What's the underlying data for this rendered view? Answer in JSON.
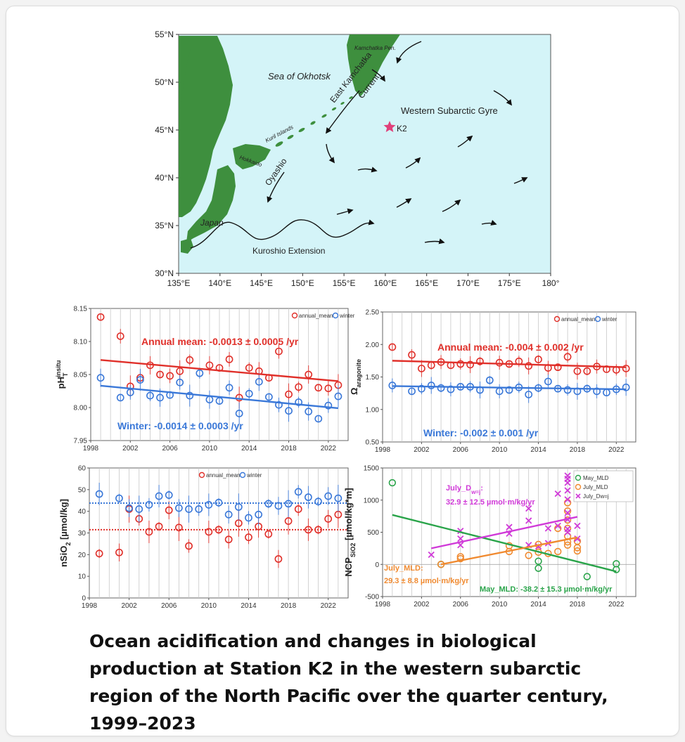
{
  "caption": "Ocean acidification and changes in biological production at Station K2 in the western subarctic region of the North Pacific over the quarter century, 1999–2023",
  "map": {
    "lat_ticks": [
      "55°N",
      "50°N",
      "45°N",
      "40°N",
      "35°N",
      "30°N"
    ],
    "lon_ticks": [
      "135°E",
      "140°E",
      "145°E",
      "150°E",
      "155°E",
      "160°E",
      "165°E",
      "170°E",
      "175°E",
      "180°"
    ],
    "labels": {
      "sea_of_okhotsk": "Sea of Okhotsk",
      "kamchatka_pen": "Kamchatka Pen.",
      "east_kamchatka_1": "East Kamchatka",
      "east_kamchatka_2": "Current",
      "western_subarctic_gyre": "Western Subarctic Gyre",
      "k2": "K2",
      "kuril_islands": "Kuril Islands",
      "hokkaido": "Hokkaido",
      "oyashio": "Oyashio",
      "japan": "Japan",
      "kuroshio_extension": "Kuroshio Extension"
    },
    "colors": {
      "ocean": "#d4f4f8",
      "land": "#3e8f3e",
      "station": "#e0407a"
    }
  },
  "chart_data": [
    {
      "id": "ph",
      "type": "scatter",
      "ylabel_main": "pH",
      "ylabel_sub": "T",
      "ylabel_sup": "insitu",
      "xlim": [
        1998,
        2024
      ],
      "ylim": [
        7.95,
        8.15
      ],
      "x_ticks": [
        "1998",
        "2002",
        "2006",
        "2010",
        "2014",
        "2018",
        "2022"
      ],
      "y_ticks": [
        "8.15",
        "8.10",
        "8.05",
        "8.00",
        "7.95"
      ],
      "y_tick_values": [
        8.15,
        8.1,
        8.05,
        8.0,
        7.95
      ],
      "legend": [
        "annual_mean",
        "winter"
      ],
      "annotations": [
        "Annual mean: -0.0013 ± 0.0005 /yr",
        "Winter: -0.0014 ± 0.0003 /yr"
      ],
      "series": [
        {
          "name": "annual_mean",
          "color": "#e0302a",
          "x": [
            1999,
            2001,
            2002,
            2003,
            2004,
            2005,
            2006,
            2007,
            2008,
            2010,
            2011,
            2012,
            2013,
            2014,
            2015,
            2016,
            2017,
            2018,
            2019,
            2020,
            2021,
            2022,
            2023
          ],
          "y": [
            8.137,
            8.108,
            8.032,
            8.045,
            8.064,
            8.05,
            8.048,
            8.055,
            8.072,
            8.064,
            8.06,
            8.073,
            8.015,
            8.06,
            8.055,
            8.045,
            8.085,
            8.02,
            8.031,
            8.05,
            8.03,
            8.029,
            8.034
          ],
          "trend": [
            [
              1999,
              8.072
            ],
            [
              2023,
              8.04
            ]
          ]
        },
        {
          "name": "winter",
          "color": "#3a78d8",
          "x": [
            1999,
            2001,
            2002,
            2003,
            2004,
            2005,
            2006,
            2007,
            2008,
            2009,
            2010,
            2011,
            2012,
            2013,
            2014,
            2015,
            2016,
            2017,
            2018,
            2019,
            2020,
            2021,
            2022,
            2023
          ],
          "y": [
            8.045,
            8.015,
            8.023,
            8.042,
            8.018,
            8.015,
            8.019,
            8.038,
            8.018,
            8.052,
            8.012,
            8.01,
            8.03,
            7.991,
            8.021,
            8.039,
            8.016,
            8.004,
            7.995,
            8.008,
            7.994,
            7.983,
            8.003,
            8.017
          ],
          "trend": [
            [
              1999,
              8.033
            ],
            [
              2023,
              7.999
            ]
          ]
        }
      ]
    },
    {
      "id": "omega",
      "type": "scatter",
      "ylabel_main": "Ω",
      "ylabel_sub": "aragonite",
      "xlim": [
        1998,
        2024
      ],
      "ylim": [
        0.5,
        2.5
      ],
      "x_ticks": [
        "1998",
        "2002",
        "2006",
        "2010",
        "2014",
        "2018",
        "2022"
      ],
      "y_ticks": [
        "2.50",
        "2.00",
        "1.50",
        "1.00",
        "0.50"
      ],
      "y_tick_values": [
        2.5,
        2.0,
        1.5,
        1.0,
        0.5
      ],
      "legend": [
        "annual_mean",
        "winter"
      ],
      "annotations": [
        "Annual mean: -0.004 ± 0.002 /yr",
        "Winter: -0.002 ± 0.001 /yr"
      ],
      "series": [
        {
          "name": "annual_mean",
          "color": "#e0302a",
          "x": [
            1999,
            2001,
            2002,
            2003,
            2004,
            2005,
            2006,
            2007,
            2008,
            2010,
            2011,
            2012,
            2013,
            2014,
            2015,
            2016,
            2017,
            2018,
            2019,
            2020,
            2021,
            2022,
            2023
          ],
          "y": [
            1.96,
            1.84,
            1.63,
            1.68,
            1.73,
            1.68,
            1.7,
            1.69,
            1.74,
            1.72,
            1.7,
            1.74,
            1.67,
            1.77,
            1.64,
            1.65,
            1.81,
            1.59,
            1.59,
            1.66,
            1.62,
            1.61,
            1.63
          ],
          "trend": [
            [
              1999,
              1.75
            ],
            [
              2023,
              1.65
            ]
          ]
        },
        {
          "name": "winter",
          "color": "#3a78d8",
          "x": [
            1999,
            2001,
            2002,
            2003,
            2004,
            2005,
            2006,
            2007,
            2008,
            2009,
            2010,
            2011,
            2012,
            2013,
            2014,
            2015,
            2016,
            2017,
            2018,
            2019,
            2020,
            2021,
            2022,
            2023
          ],
          "y": [
            1.37,
            1.28,
            1.32,
            1.37,
            1.33,
            1.31,
            1.35,
            1.35,
            1.3,
            1.45,
            1.28,
            1.3,
            1.34,
            1.23,
            1.33,
            1.43,
            1.32,
            1.3,
            1.28,
            1.32,
            1.28,
            1.26,
            1.31,
            1.34
          ],
          "trend": [
            [
              1999,
              1.36
            ],
            [
              2023,
              1.31
            ]
          ]
        }
      ]
    },
    {
      "id": "nsio2",
      "type": "scatter",
      "ylabel_main": "nSiO",
      "ylabel_sub": "2",
      "ylabel_tail": " [µmol/kg]",
      "xlim": [
        1998,
        2024
      ],
      "ylim": [
        0,
        60
      ],
      "x_ticks": [
        "1998",
        "2002",
        "2006",
        "2010",
        "2014",
        "2018",
        "2022"
      ],
      "y_ticks": [
        "60",
        "50",
        "40",
        "30",
        "20",
        "10",
        "0"
      ],
      "y_tick_values": [
        60,
        50,
        40,
        30,
        20,
        10,
        0
      ],
      "legend": [
        "annual_mean",
        "winter"
      ],
      "series": [
        {
          "name": "annual_mean",
          "color": "#e0302a",
          "x": [
            1999,
            2001,
            2002,
            2003,
            2004,
            2005,
            2006,
            2007,
            2008,
            2010,
            2011,
            2012,
            2013,
            2014,
            2015,
            2016,
            2017,
            2018,
            2019,
            2020,
            2021,
            2022,
            2023
          ],
          "y": [
            20.5,
            21.0,
            41.0,
            36.5,
            30.5,
            33.0,
            40.5,
            32.5,
            24.0,
            30.5,
            31.5,
            27.0,
            34.5,
            28.0,
            33.0,
            29.5,
            18.0,
            35.5,
            41.0,
            31.5,
            31.5,
            36.5,
            38.5
          ],
          "mean_line": 31.5
        },
        {
          "name": "winter",
          "color": "#3a78d8",
          "x": [
            1999,
            2001,
            2002,
            2003,
            2004,
            2005,
            2006,
            2007,
            2008,
            2009,
            2010,
            2011,
            2012,
            2013,
            2014,
            2015,
            2016,
            2017,
            2018,
            2019,
            2020,
            2021,
            2022,
            2023
          ],
          "y": [
            48.0,
            46.0,
            41.5,
            41.0,
            43.0,
            47.0,
            47.5,
            41.5,
            41.0,
            41.0,
            43.0,
            44.0,
            38.5,
            42.0,
            37.0,
            38.5,
            43.5,
            42.5,
            43.5,
            49.0,
            46.5,
            44.5,
            47.0,
            46.0
          ],
          "mean_line": 43.8
        }
      ]
    },
    {
      "id": "ncp",
      "type": "scatter",
      "ylabel_main": "NCP",
      "ylabel_sub": "SiO2",
      "ylabel_tail": " [µmol/kg*m]",
      "xlim": [
        1998,
        2024
      ],
      "ylim": [
        -500,
        1500
      ],
      "x_ticks": [
        "1998",
        "2002",
        "2006",
        "2010",
        "2014",
        "2018",
        "2022"
      ],
      "y_ticks": [
        "1500",
        "1000",
        "500",
        "0",
        "-500"
      ],
      "y_tick_values": [
        1500,
        1000,
        500,
        0,
        -500
      ],
      "legend": [
        "May_MLD",
        "July_MLD",
        "July_Dw=j"
      ],
      "annotations": {
        "july_dwnj_title": "July_D",
        "july_dwnj_sub": "w=j",
        "july_dwnj_colon": ":",
        "july_dwnj_value": "32.9 ± 12.5 µmol·m/kg/yr",
        "july_mld_title": "July_MLD:",
        "july_mld_value": "29.3 ± 8.8 µmol·m/kg/yr",
        "may_mld": "May_MLD: -38.2 ± 15.3 µmol·m/kg/yr"
      },
      "series": [
        {
          "name": "May_MLD",
          "color": "#2aa44a",
          "marker": "circle",
          "x": [
            1999,
            2004,
            2014,
            2014,
            2019,
            2022,
            2022
          ],
          "y": [
            1270,
            0,
            -60,
            50,
            -190,
            -80,
            10
          ],
          "trend": [
            [
              1999,
              770
            ],
            [
              2022,
              -110
            ]
          ]
        },
        {
          "name": "July_MLD",
          "color": "#f08a30",
          "marker": "circle",
          "x": [
            2004,
            2006,
            2006,
            2011,
            2011,
            2013,
            2014,
            2014,
            2015,
            2016,
            2016,
            2017,
            2017,
            2017,
            2017,
            2017,
            2017,
            2017,
            2018,
            2018,
            2018
          ],
          "y": [
            0,
            90,
            120,
            200,
            290,
            140,
            190,
            310,
            170,
            200,
            560,
            300,
            350,
            440,
            560,
            690,
            830,
            960,
            210,
            260,
            360
          ],
          "trend": [
            [
              2004,
              0
            ],
            [
              2018,
              420
            ]
          ]
        },
        {
          "name": "July_Dw=j",
          "color": "#d03ad8",
          "marker": "x",
          "x": [
            2003,
            2006,
            2006,
            2006,
            2011,
            2011,
            2013,
            2013,
            2013,
            2014,
            2015,
            2015,
            2016,
            2016,
            2017,
            2017,
            2017,
            2017,
            2017,
            2017,
            2017,
            2017,
            2017,
            2018,
            2018
          ],
          "y": [
            150,
            300,
            400,
            520,
            480,
            580,
            300,
            680,
            870,
            280,
            330,
            560,
            600,
            1100,
            500,
            550,
            700,
            800,
            1010,
            1150,
            1270,
            1330,
            1380,
            400,
            600
          ],
          "trend": [
            [
              2003,
              250
            ],
            [
              2018,
              740
            ]
          ]
        }
      ]
    }
  ]
}
